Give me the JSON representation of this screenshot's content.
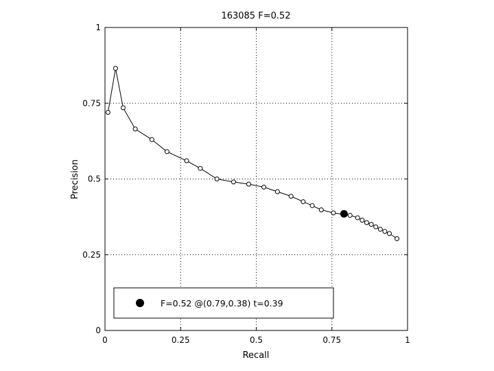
{
  "chart_data": {
    "type": "line",
    "title": "163085 F=0.52",
    "xlabel": "Recall",
    "ylabel": "Precision",
    "xlim": [
      0,
      1
    ],
    "ylim": [
      0,
      1
    ],
    "xticks": [
      "0",
      "0.25",
      "0.5",
      "0.75",
      "1"
    ],
    "yticks": [
      "0",
      "0.25",
      "0.5",
      "0.75",
      "1"
    ],
    "grid": "dotted",
    "legend_placement": "bottom",
    "series": [
      {
        "marker": "open-circle",
        "color": "#000000",
        "points": [
          [
            0.01,
            0.72
          ],
          [
            0.035,
            0.865
          ],
          [
            0.06,
            0.735
          ],
          [
            0.1,
            0.665
          ],
          [
            0.155,
            0.63
          ],
          [
            0.205,
            0.59
          ],
          [
            0.27,
            0.56
          ],
          [
            0.315,
            0.535
          ],
          [
            0.37,
            0.5
          ],
          [
            0.425,
            0.49
          ],
          [
            0.475,
            0.483
          ],
          [
            0.525,
            0.473
          ],
          [
            0.57,
            0.458
          ],
          [
            0.615,
            0.443
          ],
          [
            0.655,
            0.425
          ],
          [
            0.685,
            0.412
          ],
          [
            0.715,
            0.398
          ],
          [
            0.755,
            0.388
          ],
          [
            0.81,
            0.38
          ],
          [
            0.835,
            0.372
          ],
          [
            0.85,
            0.364
          ],
          [
            0.865,
            0.356
          ],
          [
            0.88,
            0.35
          ],
          [
            0.895,
            0.342
          ],
          [
            0.91,
            0.334
          ],
          [
            0.925,
            0.327
          ],
          [
            0.94,
            0.32
          ],
          [
            0.965,
            0.303
          ]
        ]
      }
    ],
    "best_point": {
      "x": 0.79,
      "y": 0.385,
      "color": "#000000"
    },
    "legend": {
      "label": "F=0.52 @(0.79,0.38) t=0.39"
    }
  }
}
